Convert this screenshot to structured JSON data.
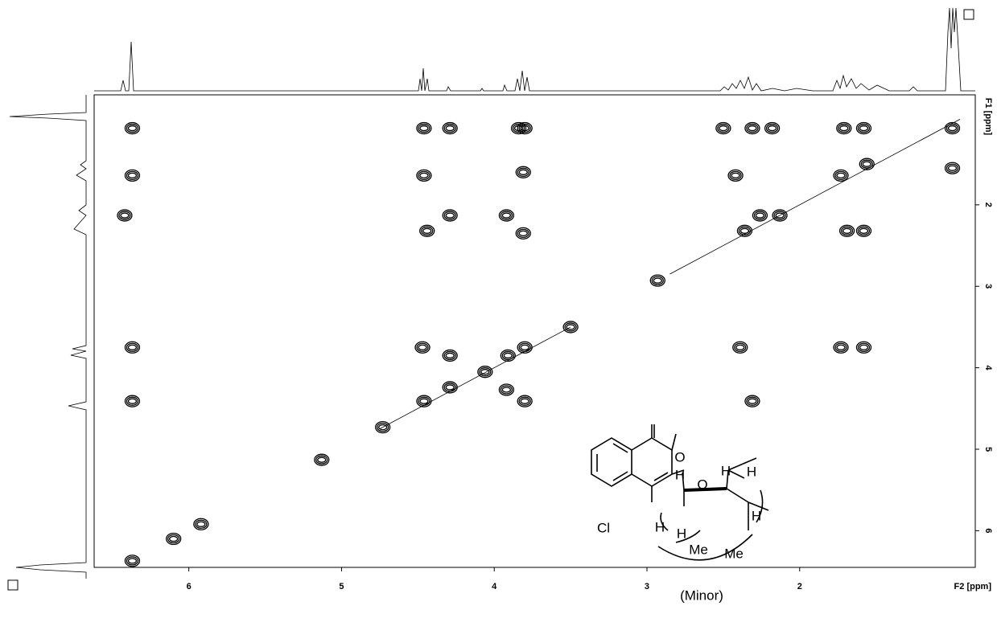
{
  "chart_data": {
    "type": "contour",
    "x_label": "F2 [ppm]",
    "y_label": "F1 [ppm]",
    "xlim": [
      6.62,
      0.85
    ],
    "ylim": [
      0.65,
      6.45
    ],
    "xticks": [
      6,
      5,
      4,
      3,
      2
    ],
    "yticks": [
      2,
      3,
      4,
      5,
      6
    ],
    "x": [
      6.37,
      4.46,
      4.29,
      3.84,
      3.8,
      2.5,
      2.31,
      2.18,
      1.71,
      1.58,
      1.0,
      6.37,
      4.46,
      3.81,
      2.42,
      1.73,
      1.56,
      1.0,
      6.42,
      4.29,
      3.92,
      2.26,
      2.13,
      4.44,
      3.81,
      2.36,
      1.69,
      1.58,
      6.37,
      4.47,
      4.29,
      3.91,
      3.8,
      2.39,
      1.73,
      1.58,
      4.29,
      3.92,
      4.06,
      6.37,
      4.46,
      3.8,
      2.31,
      6.37,
      5.13,
      4.73,
      5.92,
      6.1,
      3.5,
      2.93
    ],
    "values": [
      1.06,
      1.06,
      1.06,
      1.06,
      1.06,
      1.06,
      1.06,
      1.06,
      1.06,
      1.06,
      1.06,
      1.64,
      1.64,
      1.6,
      1.64,
      1.64,
      1.5,
      1.55,
      2.13,
      2.13,
      2.13,
      2.13,
      2.13,
      2.32,
      2.35,
      2.32,
      2.32,
      2.32,
      3.75,
      3.75,
      3.85,
      3.85,
      3.75,
      3.75,
      3.75,
      3.75,
      4.24,
      4.27,
      4.05,
      4.41,
      4.41,
      4.41,
      4.41,
      6.37,
      5.13,
      4.73,
      5.92,
      6.1,
      3.5,
      2.93
    ],
    "annotations": [
      "(Minor)"
    ],
    "structure_labels": [
      "O",
      "Cl",
      "O",
      "H",
      "H",
      "H",
      "H",
      "H",
      "H",
      "Me",
      "Me"
    ]
  }
}
